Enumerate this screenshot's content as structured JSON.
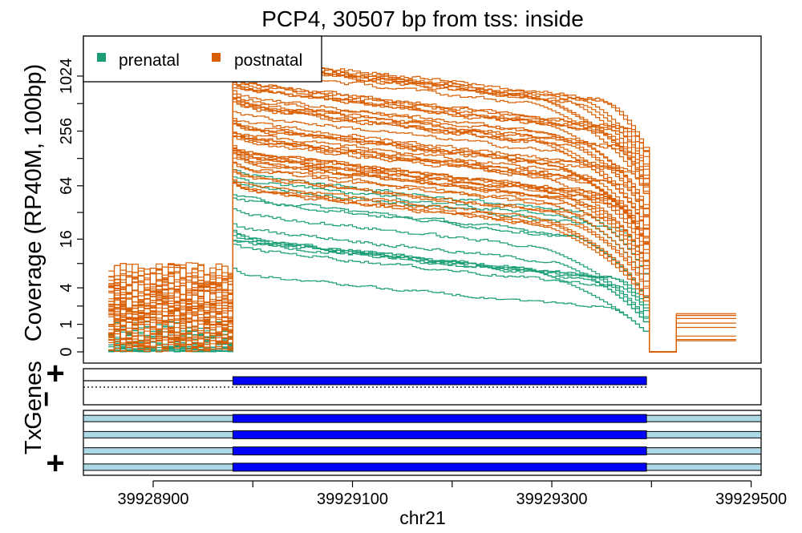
{
  "chart_data": {
    "type": "line",
    "title": "PCP4, 30507 bp from tss: inside",
    "ylabel": "Coverage (RP40M, 100bp)",
    "xlabel": "chr21",
    "x_axis": {
      "range": [
        39928830,
        39929510
      ],
      "ticks": [
        39928900,
        39929000,
        39929100,
        39929200,
        39929300,
        39929400,
        39929500
      ],
      "tick_labels": [
        "39928900",
        "",
        "39929100",
        "",
        "39929300",
        "",
        "39929500"
      ]
    },
    "y_axis": {
      "scale": "log2(y+1)",
      "ticks": [
        0,
        1,
        4,
        16,
        64,
        256,
        1024
      ],
      "tick_labels": [
        "0",
        "1",
        "4",
        "16",
        "64",
        "256",
        "1024"
      ],
      "range": [
        0,
        2800
      ]
    },
    "legend": {
      "placement": "top-left",
      "entries": [
        {
          "label": "prenatal",
          "color": "#1b9e77"
        },
        {
          "label": "postnatal",
          "color": "#d95f02"
        }
      ]
    },
    "region": {
      "start": 39928855,
      "gene_start": 39928980,
      "gene_end": 39929395,
      "end": 39929485
    },
    "series": [
      {
        "group": "prenatal",
        "color": "#1b9e77",
        "count": 14,
        "plateau_range": [
          6,
          90
        ],
        "pre_range": [
          0,
          1.5
        ],
        "post_range": [
          0,
          0
        ]
      },
      {
        "group": "postnatal",
        "color": "#d95f02",
        "count": 50,
        "plateau_range": [
          55,
          1800
        ],
        "pre_range": [
          0,
          9
        ],
        "post_range": [
          0,
          2
        ]
      }
    ],
    "tracks": {
      "genes": {
        "label": "Genes",
        "strand_labels": [
          "+",
          "−"
        ],
        "line_extent": [
          39928830,
          39929395
        ],
        "exon": [
          39928980,
          39929395
        ]
      },
      "tx": {
        "label": "Tx",
        "strand_label": "+",
        "count": 4,
        "exon": [
          39928980,
          39929395
        ],
        "exon_color": "#0000ff",
        "utr_color": "#add8e6"
      }
    }
  }
}
